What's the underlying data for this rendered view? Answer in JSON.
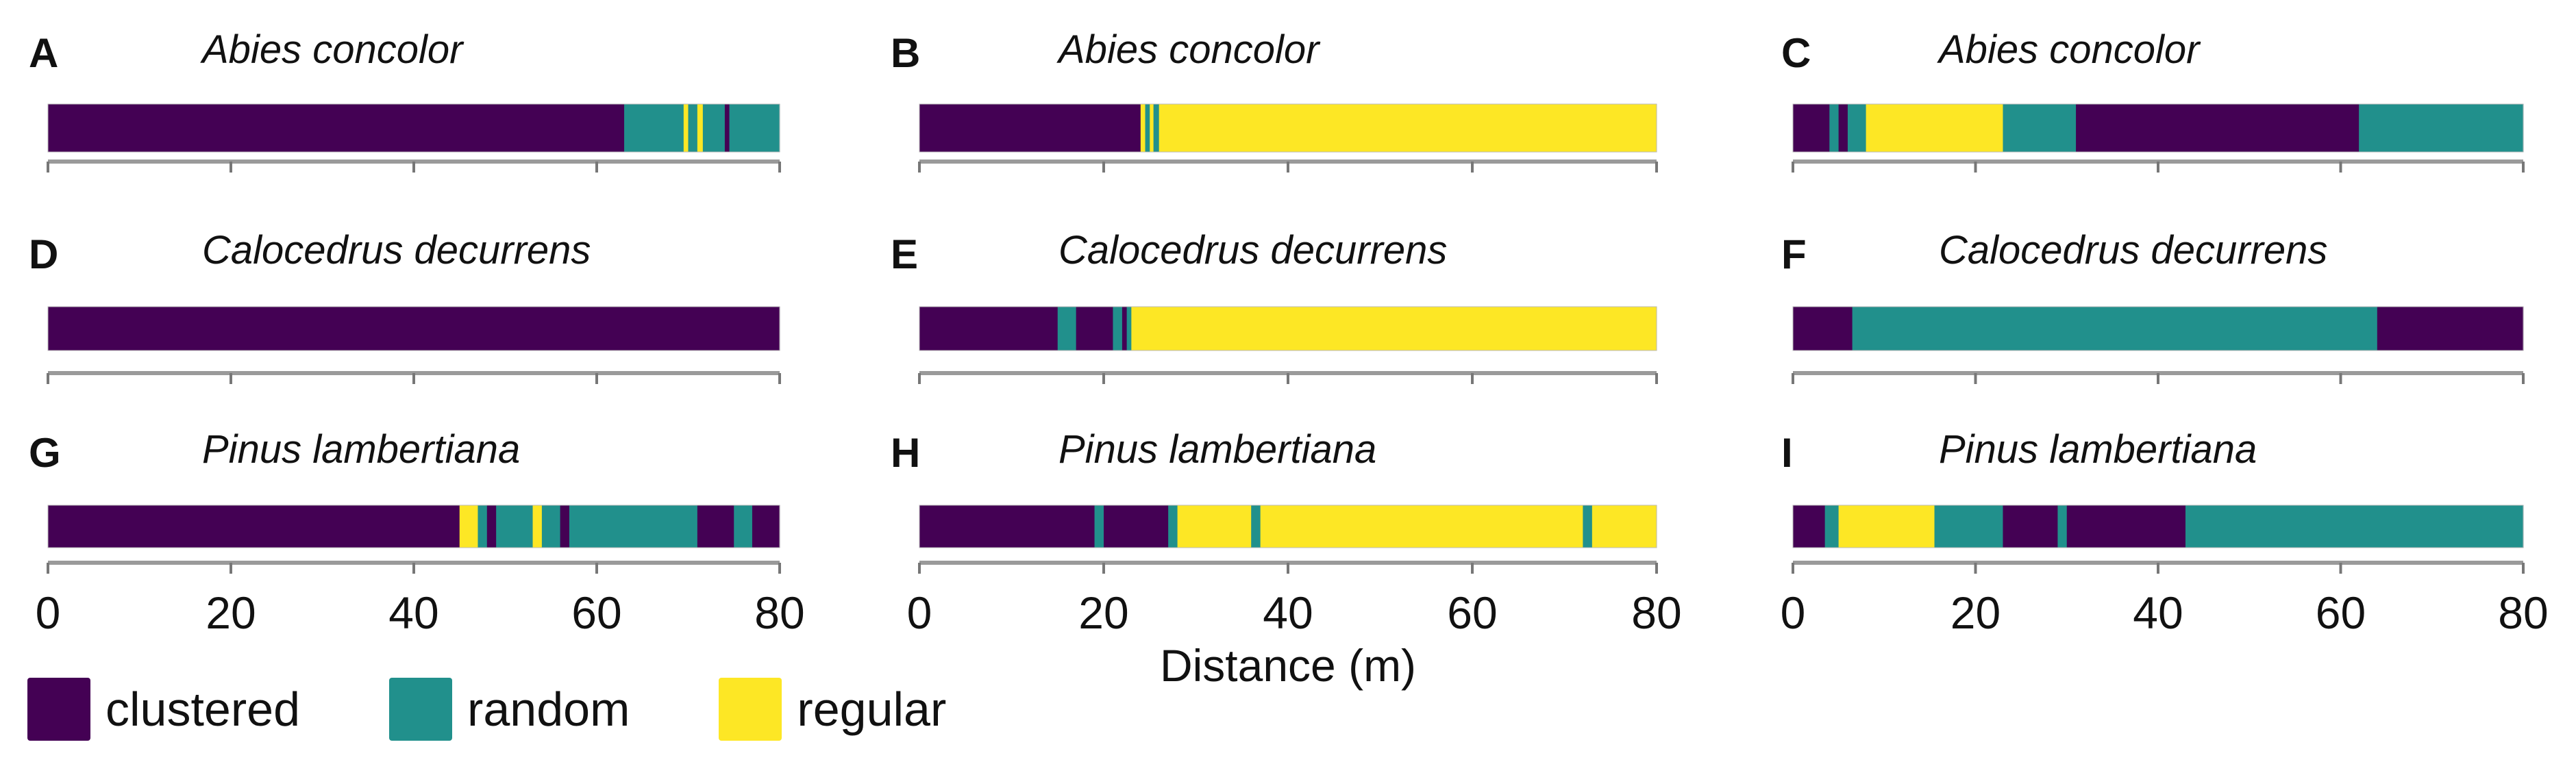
{
  "colors": {
    "clustered": "#440154",
    "random": "#21908C",
    "regular": "#FDE725",
    "axis": "#9a9a9a"
  },
  "legend": [
    {
      "label": "clustered",
      "key": "clustered"
    },
    {
      "label": "random",
      "key": "random"
    },
    {
      "label": "regular",
      "key": "regular"
    }
  ],
  "xlabel": "Distance (m)",
  "tick_labels": [
    "0",
    "20",
    "40",
    "60",
    "80"
  ],
  "chart_data": [
    {
      "panel": "A",
      "title": "Abies concolor",
      "type": "bar",
      "xlim": [
        0,
        80
      ],
      "xlabel": "",
      "segments": [
        [
          0,
          63,
          "clustered"
        ],
        [
          63,
          63.5,
          "random"
        ],
        [
          63.5,
          69.5,
          "random"
        ],
        [
          69.5,
          70,
          "regular"
        ],
        [
          70,
          71,
          "random"
        ],
        [
          71,
          71.6,
          "regular"
        ],
        [
          71.6,
          74,
          "random"
        ],
        [
          74,
          74.5,
          "clustered"
        ],
        [
          74.5,
          80,
          "random"
        ]
      ]
    },
    {
      "panel": "B",
      "title": "Abies concolor",
      "type": "bar",
      "xlim": [
        0,
        80
      ],
      "xlabel": "",
      "segments": [
        [
          0,
          24,
          "clustered"
        ],
        [
          24,
          24.5,
          "regular"
        ],
        [
          24.5,
          25,
          "random"
        ],
        [
          25,
          25.4,
          "regular"
        ],
        [
          25.4,
          26,
          "random"
        ],
        [
          26,
          80,
          "regular"
        ]
      ]
    },
    {
      "panel": "C",
      "title": "Abies concolor",
      "type": "bar",
      "xlim": [
        0,
        80
      ],
      "xlabel": "",
      "segments": [
        [
          0,
          4,
          "clustered"
        ],
        [
          4,
          5,
          "random"
        ],
        [
          5,
          6,
          "clustered"
        ],
        [
          6,
          8,
          "random"
        ],
        [
          8,
          23,
          "regular"
        ],
        [
          23,
          31,
          "random"
        ],
        [
          31,
          62,
          "clustered"
        ],
        [
          62,
          80,
          "random"
        ]
      ]
    },
    {
      "panel": "D",
      "title": "Calocedrus decurrens",
      "type": "bar",
      "xlim": [
        0,
        80
      ],
      "xlabel": "",
      "segments": [
        [
          0,
          80,
          "clustered"
        ]
      ]
    },
    {
      "panel": "E",
      "title": "Calocedrus decurrens",
      "type": "bar",
      "xlim": [
        0,
        80
      ],
      "xlabel": "",
      "segments": [
        [
          0,
          15,
          "clustered"
        ],
        [
          15,
          17,
          "random"
        ],
        [
          17,
          21,
          "clustered"
        ],
        [
          21,
          22,
          "random"
        ],
        [
          22,
          22.5,
          "clustered"
        ],
        [
          22.5,
          23,
          "random"
        ],
        [
          23,
          80,
          "regular"
        ]
      ]
    },
    {
      "panel": "F",
      "title": "Calocedrus decurrens",
      "type": "bar",
      "xlim": [
        0,
        80
      ],
      "xlabel": "",
      "segments": [
        [
          0,
          6.5,
          "clustered"
        ],
        [
          6.5,
          64,
          "random"
        ],
        [
          64,
          80,
          "clustered"
        ]
      ]
    },
    {
      "panel": "G",
      "title": "Pinus lambertiana",
      "type": "bar",
      "xlim": [
        0,
        80
      ],
      "xlabel": "",
      "segments": [
        [
          0,
          45,
          "clustered"
        ],
        [
          45,
          47,
          "regular"
        ],
        [
          47,
          48,
          "random"
        ],
        [
          48,
          49,
          "clustered"
        ],
        [
          49,
          53,
          "random"
        ],
        [
          53,
          54,
          "regular"
        ],
        [
          54,
          56,
          "random"
        ],
        [
          56,
          57,
          "clustered"
        ],
        [
          57,
          71,
          "random"
        ],
        [
          71,
          75,
          "clustered"
        ],
        [
          75,
          77,
          "random"
        ],
        [
          77,
          80,
          "clustered"
        ]
      ]
    },
    {
      "panel": "H",
      "title": "Pinus lambertiana",
      "type": "bar",
      "xlim": [
        0,
        80
      ],
      "xlabel": "Distance (m)",
      "segments": [
        [
          0,
          19,
          "clustered"
        ],
        [
          19,
          20,
          "random"
        ],
        [
          20,
          27,
          "clustered"
        ],
        [
          27,
          28,
          "random"
        ],
        [
          28,
          36,
          "regular"
        ],
        [
          36,
          37,
          "random"
        ],
        [
          37,
          72,
          "regular"
        ],
        [
          72,
          73,
          "random"
        ],
        [
          73,
          80,
          "regular"
        ]
      ]
    },
    {
      "panel": "I",
      "title": "Pinus lambertiana",
      "type": "bar",
      "xlim": [
        0,
        80
      ],
      "xlabel": "",
      "segments": [
        [
          0,
          3.5,
          "clustered"
        ],
        [
          3.5,
          5,
          "random"
        ],
        [
          5,
          15.5,
          "regular"
        ],
        [
          15.5,
          23,
          "random"
        ],
        [
          23,
          29,
          "clustered"
        ],
        [
          29,
          30,
          "random"
        ],
        [
          30,
          43,
          "clustered"
        ],
        [
          43,
          80,
          "random"
        ]
      ]
    }
  ]
}
